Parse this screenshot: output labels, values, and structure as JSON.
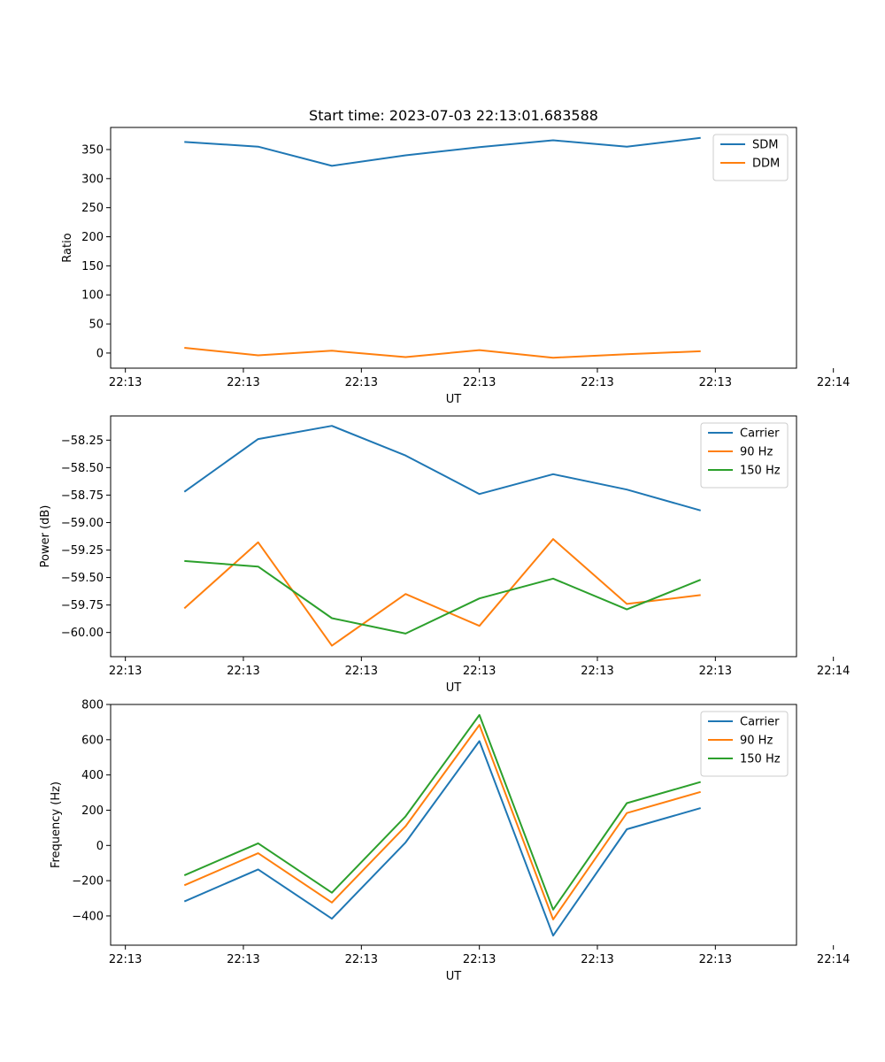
{
  "chart_data": [
    {
      "type": "line",
      "title": "Start time: 2023-07-03 22:13:01.683588",
      "xlabel": "UT",
      "ylabel": "Ratio",
      "xticks": [
        "22:13",
        "22:13",
        "22:13",
        "22:13",
        "22:13",
        "22:13",
        "22:14"
      ],
      "x": [
        1,
        2,
        3,
        4,
        5,
        6,
        7,
        8
      ],
      "xlim": [
        0,
        9.3
      ],
      "ylim": [
        -26,
        388
      ],
      "yticks": [
        0,
        50,
        100,
        150,
        200,
        250,
        300,
        350
      ],
      "series": [
        {
          "name": "SDM",
          "color": "#1f77b4",
          "values": [
            363,
            355,
            322,
            340,
            354,
            366,
            355,
            370
          ]
        },
        {
          "name": "DDM",
          "color": "#ff7f0e",
          "values": [
            9,
            -4,
            4,
            -7,
            5,
            -8,
            -2,
            3
          ]
        }
      ],
      "legend": "upper-right"
    },
    {
      "type": "line",
      "title": "",
      "xlabel": "UT",
      "ylabel": "Power (dB)",
      "xticks": [
        "22:13",
        "22:13",
        "22:13",
        "22:13",
        "22:13",
        "22:13",
        "22:14"
      ],
      "x": [
        1,
        2,
        3,
        4,
        5,
        6,
        7,
        8
      ],
      "xlim": [
        0,
        9.3
      ],
      "ylim": [
        -60.22,
        -58.03
      ],
      "yticks": [
        -58.25,
        -58.5,
        -58.75,
        -59.0,
        -59.25,
        -59.5,
        -59.75,
        -60.0
      ],
      "ytick_labels": [
        "−58.25",
        "−58.50",
        "−58.75",
        "−59.00",
        "−59.25",
        "−59.50",
        "−59.75",
        "−60.00"
      ],
      "series": [
        {
          "name": "Carrier",
          "color": "#1f77b4",
          "values": [
            -58.72,
            -58.24,
            -58.12,
            -58.39,
            -58.74,
            -58.56,
            -58.7,
            -58.89
          ]
        },
        {
          "name": "90 Hz",
          "color": "#ff7f0e",
          "values": [
            -59.78,
            -59.18,
            -60.12,
            -59.65,
            -59.94,
            -59.15,
            -59.74,
            -59.66
          ]
        },
        {
          "name": "150 Hz",
          "color": "#2ca02c",
          "values": [
            -59.35,
            -59.4,
            -59.87,
            -60.01,
            -59.69,
            -59.51,
            -59.79,
            -59.52
          ]
        }
      ],
      "legend": "upper-right"
    },
    {
      "type": "line",
      "title": "",
      "xlabel": "UT",
      "ylabel": "Frequency (Hz)",
      "xticks": [
        "22:13",
        "22:13",
        "22:13",
        "22:13",
        "22:13",
        "22:13",
        "22:14"
      ],
      "x": [
        1,
        2,
        3,
        4,
        5,
        6,
        7,
        8
      ],
      "xlim": [
        0,
        9.3
      ],
      "ylim": [
        -566,
        800
      ],
      "yticks": [
        800,
        600,
        400,
        200,
        0,
        -200,
        -400
      ],
      "ytick_labels": [
        "800",
        "600",
        "400",
        "200",
        "0",
        "−200",
        "−400"
      ],
      "series": [
        {
          "name": "Carrier",
          "color": "#1f77b4",
          "values": [
            -318,
            -136,
            -416,
            17,
            592,
            -512,
            92,
            212
          ]
        },
        {
          "name": "90 Hz",
          "color": "#ff7f0e",
          "values": [
            -226,
            -44,
            -324,
            109,
            684,
            -420,
            184,
            304
          ]
        },
        {
          "name": "150 Hz",
          "color": "#2ca02c",
          "values": [
            -170,
            12,
            -268,
            165,
            740,
            -364,
            240,
            360
          ]
        }
      ],
      "legend": "upper-right"
    }
  ]
}
